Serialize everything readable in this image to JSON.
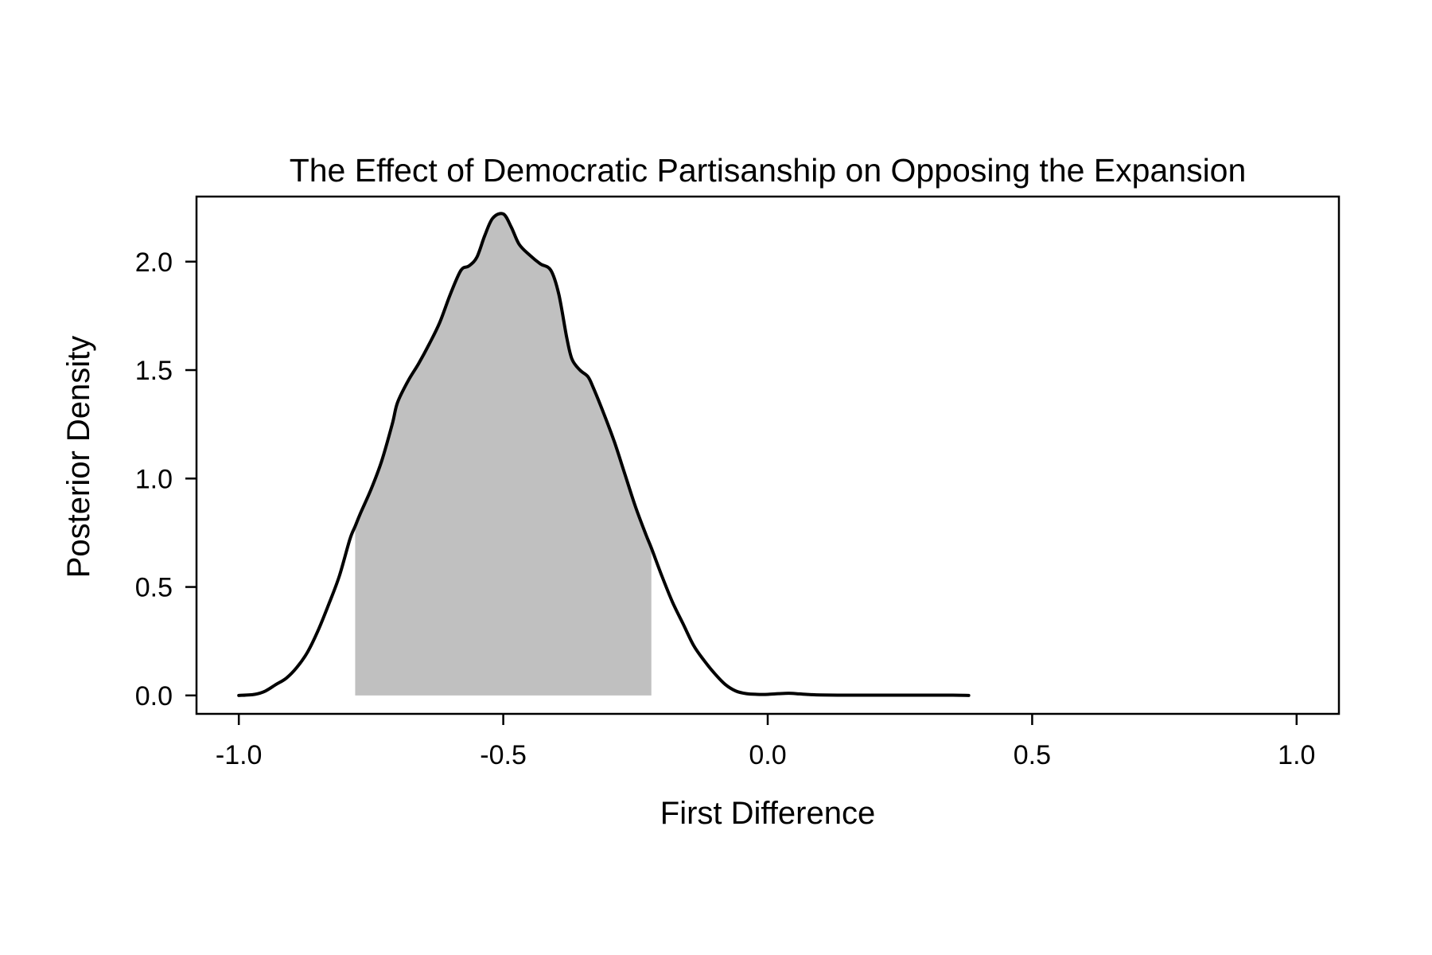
{
  "chart_data": {
    "type": "area",
    "title": "The Effect of Democratic Partisanship on Opposing the Expansion",
    "xlabel": "First Difference",
    "ylabel": "Posterior Density",
    "xlim": [
      -1.08,
      1.08
    ],
    "ylim": [
      -0.085,
      2.3
    ],
    "x_ticks": [
      -1.0,
      -0.5,
      0.0,
      0.5,
      1.0
    ],
    "x_tick_labels": [
      "-1.0",
      "-0.5",
      "0.0",
      "0.5",
      "1.0"
    ],
    "y_ticks": [
      0.0,
      0.5,
      1.0,
      1.5,
      2.0
    ],
    "y_tick_labels": [
      "0.0",
      "0.5",
      "1.0",
      "1.5",
      "2.0"
    ],
    "grid": false,
    "shaded_interval": [
      -0.78,
      -0.22
    ],
    "series": [
      {
        "x": [
          -1.0,
          -0.97,
          -0.95,
          -0.93,
          -0.91,
          -0.89,
          -0.87,
          -0.85,
          -0.83,
          -0.81,
          -0.79,
          -0.78,
          -0.77,
          -0.75,
          -0.73,
          -0.71,
          -0.7,
          -0.68,
          -0.66,
          -0.64,
          -0.62,
          -0.6,
          -0.58,
          -0.565,
          -0.55,
          -0.535,
          -0.52,
          -0.5,
          -0.485,
          -0.47,
          -0.45,
          -0.43,
          -0.41,
          -0.395,
          -0.38,
          -0.37,
          -0.355,
          -0.34,
          -0.33,
          -0.31,
          -0.29,
          -0.27,
          -0.25,
          -0.23,
          -0.22,
          -0.2,
          -0.18,
          -0.16,
          -0.14,
          -0.12,
          -0.1,
          -0.08,
          -0.06,
          -0.04,
          -0.02,
          0.0,
          0.02,
          0.04,
          0.06,
          0.08,
          0.1,
          0.15,
          0.2,
          0.25,
          0.3,
          0.35,
          0.38
        ],
        "y": [
          0.0,
          0.005,
          0.02,
          0.05,
          0.08,
          0.13,
          0.2,
          0.3,
          0.42,
          0.55,
          0.72,
          0.78,
          0.84,
          0.95,
          1.08,
          1.25,
          1.35,
          1.45,
          1.53,
          1.62,
          1.72,
          1.85,
          1.96,
          1.98,
          2.02,
          2.12,
          2.2,
          2.22,
          2.16,
          2.08,
          2.03,
          1.99,
          1.96,
          1.85,
          1.65,
          1.55,
          1.5,
          1.47,
          1.42,
          1.3,
          1.17,
          1.02,
          0.87,
          0.74,
          0.68,
          0.55,
          0.43,
          0.33,
          0.23,
          0.16,
          0.1,
          0.05,
          0.02,
          0.008,
          0.005,
          0.005,
          0.008,
          0.01,
          0.007,
          0.004,
          0.002,
          0.001,
          0.001,
          0.001,
          0.001,
          0.001,
          0.0
        ]
      }
    ]
  }
}
